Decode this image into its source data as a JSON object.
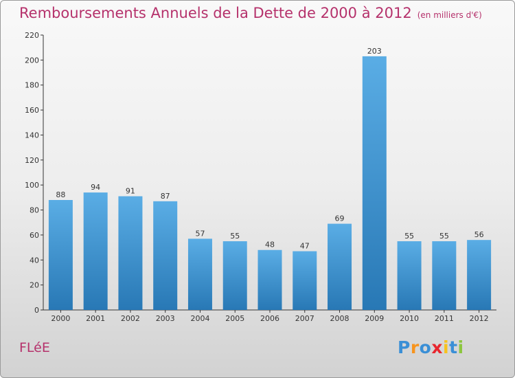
{
  "title": "Remboursements Annuels de la Dette de 2000 à 2012",
  "subtitle": "(en milliers d'€)",
  "commune": "FLéE",
  "logo": {
    "letters": [
      "P",
      "r",
      "o",
      "x",
      "i",
      "t",
      "i"
    ],
    "colors": [
      "#3a8fd6",
      "#f7941d",
      "#3a8fd6",
      "#e8262e",
      "#f7c21d",
      "#3a8fd6",
      "#8cc63f"
    ]
  },
  "chart_data": {
    "type": "bar",
    "categories": [
      "2000",
      "2001",
      "2002",
      "2003",
      "2004",
      "2005",
      "2006",
      "2007",
      "2008",
      "2009",
      "2010",
      "2011",
      "2012"
    ],
    "values": [
      88,
      94,
      91,
      87,
      57,
      55,
      48,
      47,
      69,
      203,
      55,
      55,
      56
    ],
    "ylim": [
      0,
      220
    ],
    "yticks": [
      0,
      20,
      40,
      60,
      80,
      100,
      120,
      140,
      160,
      180,
      200,
      220
    ],
    "grid": false,
    "bar_color_top": "#5aade5",
    "bar_color_bottom": "#2878b5"
  }
}
